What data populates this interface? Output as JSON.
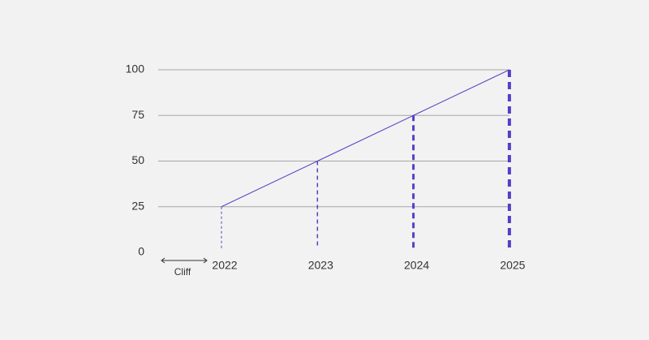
{
  "chart_data": {
    "type": "line",
    "categories": [
      "2022",
      "2023",
      "2024",
      "2025"
    ],
    "series": [
      {
        "color": "#5240c4",
        "values": [
          25,
          50,
          75,
          100
        ]
      }
    ],
    "ylim": [
      0,
      100
    ],
    "yticks": [
      0,
      25,
      50,
      75,
      100
    ],
    "grid": true,
    "annotation": "Cliff"
  }
}
